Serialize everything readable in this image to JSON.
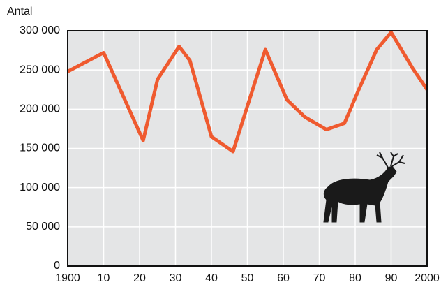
{
  "chart_data": {
    "type": "line",
    "y_label": "Antal",
    "x": [
      1900,
      1910,
      1921,
      1925,
      1931,
      1934,
      1940,
      1946,
      1955,
      1961,
      1966,
      1972,
      1977,
      1981,
      1986,
      1990,
      1996,
      2000
    ],
    "values": [
      248000,
      272000,
      160000,
      238000,
      280000,
      262000,
      165000,
      146000,
      276000,
      212000,
      190000,
      174000,
      182000,
      225000,
      276000,
      298000,
      252000,
      225000
    ],
    "color": "#ef5a2f",
    "xlim": [
      1900,
      2000
    ],
    "xticks": [
      1900,
      {
        "value": 1910,
        "label": "10"
      },
      {
        "value": 1920,
        "label": "20"
      },
      {
        "value": 1930,
        "label": "30"
      },
      {
        "value": 1940,
        "label": "40"
      },
      {
        "value": 1950,
        "label": "50"
      },
      {
        "value": 1960,
        "label": "60"
      },
      {
        "value": 1970,
        "label": "70"
      },
      {
        "value": 1980,
        "label": "80"
      },
      {
        "value": 1990,
        "label": "90"
      },
      2000
    ],
    "ylim": [
      0,
      300000
    ],
    "yticks": [
      0,
      {
        "value": 50000,
        "label": "50 000"
      },
      {
        "value": 100000,
        "label": "100 000"
      },
      {
        "value": 150000,
        "label": "150 000"
      },
      {
        "value": 200000,
        "label": "200 000"
      },
      {
        "value": 250000,
        "label": "250 000"
      },
      {
        "value": 300000,
        "label": "300 000"
      }
    ],
    "grid": true
  }
}
